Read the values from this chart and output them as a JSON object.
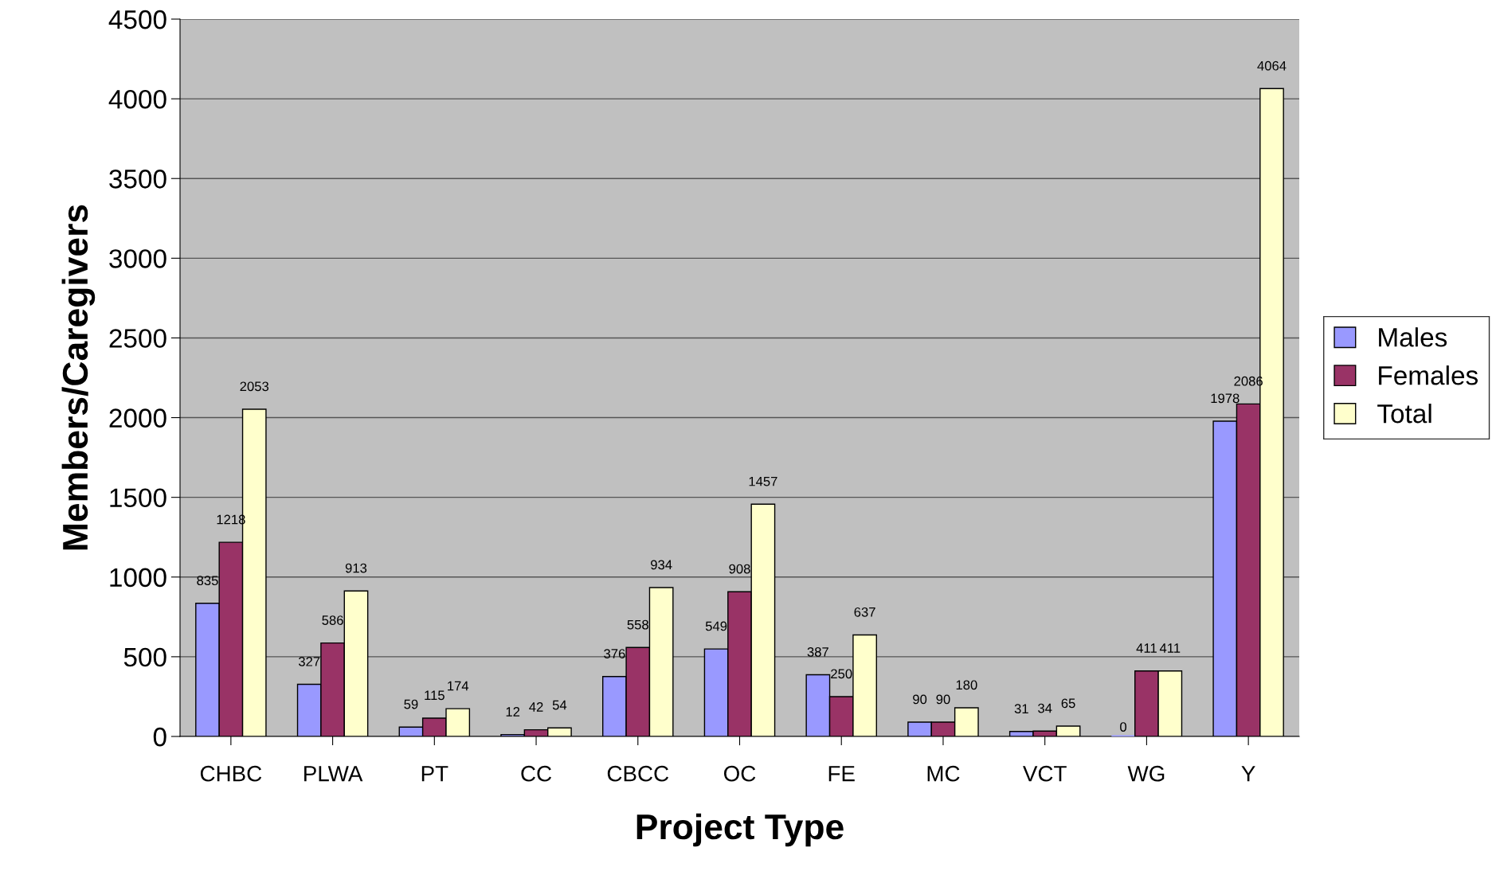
{
  "chart_data": {
    "type": "bar",
    "xlabel": "Project Type",
    "ylabel": "Members/Caregivers",
    "categories": [
      "CHBC",
      "PLWA",
      "PT",
      "CC",
      "CBCC",
      "OC",
      "FE",
      "MC",
      "VCT",
      "WG",
      "Y"
    ],
    "series": [
      {
        "name": "Males",
        "color": "#9999ff",
        "values": [
          835,
          327,
          59,
          12,
          376,
          549,
          387,
          90,
          31,
          0,
          1978
        ]
      },
      {
        "name": "Females",
        "color": "#993366",
        "values": [
          1218,
          586,
          115,
          42,
          558,
          908,
          250,
          90,
          34,
          411,
          2086
        ]
      },
      {
        "name": "Total",
        "color": "#ffffcc",
        "values": [
          2053,
          913,
          174,
          54,
          934,
          1457,
          637,
          180,
          65,
          411,
          4064
        ]
      }
    ],
    "ylim": [
      0,
      4500
    ],
    "yticks": [
      0,
      500,
      1000,
      1500,
      2000,
      2500,
      3000,
      3500,
      4000,
      4500
    ],
    "grid": "y",
    "legend": "right",
    "data_labels": true
  }
}
